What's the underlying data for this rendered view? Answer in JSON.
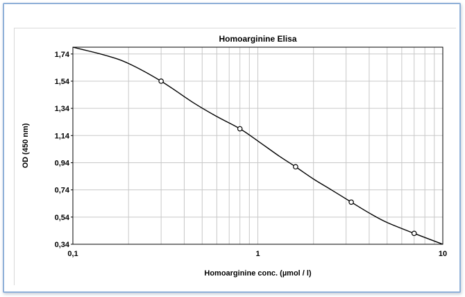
{
  "chart_data": {
    "type": "scatter",
    "title": "Homoarginine Elisa",
    "xlabel": "Homoarginine conc. (µmol / l)",
    "ylabel": "OD (450 nm)",
    "x_scale": "log",
    "xlim": [
      0.1,
      10
    ],
    "ylim": [
      0.34,
      1.79
    ],
    "x_tick_labels": [
      "0,1",
      "1",
      "10"
    ],
    "y_tick_labels": [
      "0,34",
      "0,54",
      "0,74",
      "0,94",
      "1,14",
      "1,34",
      "1,54",
      "1,74"
    ],
    "grid": true,
    "series": [
      {
        "kind": "points",
        "marker": "open-circle",
        "x": [
          0.3,
          0.8,
          1.6,
          3.2,
          7.0
        ],
        "y": [
          1.54,
          1.19,
          0.91,
          0.65,
          0.42
        ]
      },
      {
        "kind": "fitted-curve",
        "x": [
          0.1,
          0.15,
          0.2,
          0.3,
          0.45,
          0.6,
          0.8,
          1.0,
          1.3,
          1.6,
          2.0,
          2.5,
          3.2,
          4.0,
          5.0,
          7.0,
          10.0
        ],
        "y": [
          1.79,
          1.73,
          1.67,
          1.54,
          1.38,
          1.28,
          1.19,
          1.1,
          0.99,
          0.91,
          0.82,
          0.74,
          0.65,
          0.57,
          0.5,
          0.42,
          0.34
        ]
      }
    ],
    "colors": {
      "line": "#000000",
      "grid": "#c8c8c8",
      "border": "#8fb0d8"
    }
  }
}
